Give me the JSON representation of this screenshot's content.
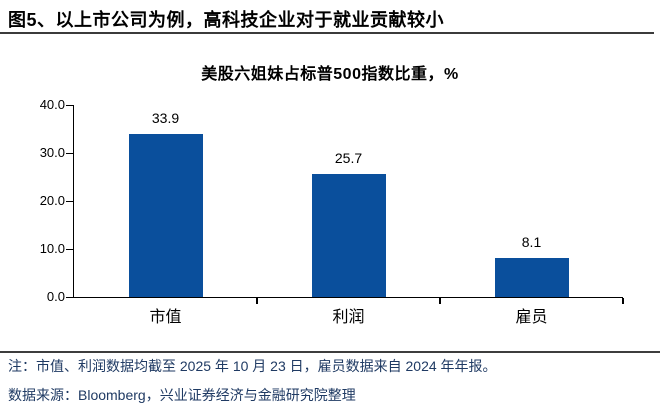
{
  "header": {
    "title": "图5、以上市公司为例，高科技企业对于就业贡献较小"
  },
  "chart_data": {
    "type": "bar",
    "title": "美股六姐妹占标普500指数比重，%",
    "categories": [
      "市值",
      "利润",
      "雇员"
    ],
    "values": [
      33.9,
      25.7,
      8.1
    ],
    "value_labels": [
      "33.9",
      "25.7",
      "8.1"
    ],
    "xlabel": "",
    "ylabel": "",
    "ylim": [
      0,
      40
    ],
    "y_ticks": [
      "0.0",
      "10.0",
      "20.0",
      "30.0",
      "40.0"
    ],
    "grid": false,
    "legend": false,
    "bar_color": "#0A4F9C",
    "axis_color": "#000000"
  },
  "footer": {
    "note": "注：市值、利润数据均截至 2025 年 10 月 23 日，雇员数据来自 2024 年年报。",
    "source": "数据来源：Bloomberg，兴业证券经济与金融研究院整理"
  }
}
